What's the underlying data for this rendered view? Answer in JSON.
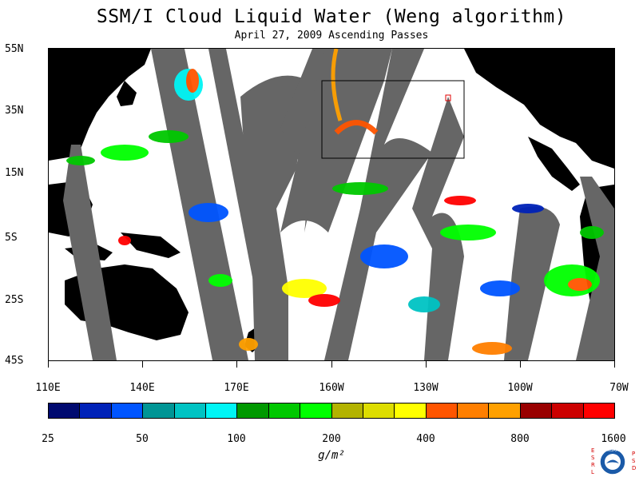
{
  "header": {
    "title": "SSM/I Cloud Liquid Water (Weng algorithm)",
    "subtitle": "April 27, 2009  Ascending Passes"
  },
  "map": {
    "latitude_labels": [
      "55N",
      "35N",
      "15N",
      "5S",
      "25S",
      "45S"
    ],
    "longitude_labels": [
      "110E",
      "140E",
      "170E",
      "160W",
      "130W",
      "100W",
      "70W"
    ],
    "swath_gap_color": "#666666",
    "land_color": "#000000",
    "ocean_color": "#ffffff",
    "inset_box_color": "#000000",
    "marker_color": "#e00000"
  },
  "colorbar": {
    "colors": [
      "#000a70",
      "#0022b8",
      "#0055ff",
      "#009595",
      "#00c3c3",
      "#00f5f5",
      "#009900",
      "#00c800",
      "#00ff00",
      "#b3b300",
      "#dddd00",
      "#ffff00",
      "#ff5500",
      "#ff7f00",
      "#ffa000",
      "#990000",
      "#cc0000",
      "#ff0000"
    ],
    "tick_labels": [
      "25",
      "50",
      "100",
      "200",
      "400",
      "800",
      "1600"
    ],
    "unit": "g/m²"
  },
  "logo": {
    "left_text": "ESRL",
    "right_text": "PSD",
    "center_text": "NOAA",
    "color": "#d40000"
  }
}
